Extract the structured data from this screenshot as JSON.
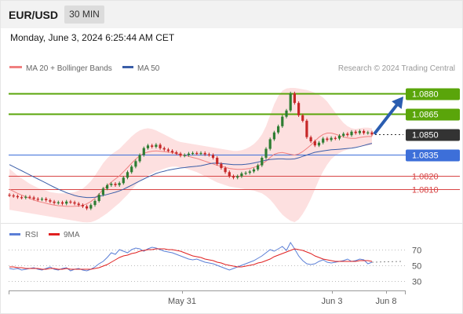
{
  "header": {
    "symbol": "EUR/USD",
    "timeframe": "30 MIN",
    "datetime": "Monday, June 3, 2024 6:25:44 AM CET"
  },
  "legend": {
    "ma20": "MA 20 + Bollinger Bands",
    "ma50": "MA 50",
    "credit": "Research © 2024 Trading Central",
    "rsi": "RSI",
    "ma9": "9MA"
  },
  "colors": {
    "bollinger_fill": "#fde0e0",
    "ma20": "#f08080",
    "ma50": "#3b5ea8",
    "bull": "#2e7d32",
    "bear": "#c62828",
    "resistance": "#5aa50a",
    "support_blue": "#3d6fd9",
    "support_red": "#d84545",
    "current": "#333333",
    "rsi": "#5b7fd6",
    "rsi_ma": "#e02020",
    "arrow": "#2a5db0"
  },
  "chart_data": [
    {
      "type": "line",
      "subtype": "candlestick-price",
      "title": "EUR/USD 30 MIN",
      "ylim": [
        1.079,
        1.0892
      ],
      "xlabel": "",
      "ylabel": "",
      "x_ticks": [
        "May 31",
        "Jun 3",
        "Jun 8"
      ],
      "grid": false,
      "legend_placement": "top-left",
      "levels": [
        {
          "value": 1.088,
          "label": "1.0880",
          "kind": "resistance"
        },
        {
          "value": 1.0865,
          "label": "1.0865",
          "kind": "resistance"
        },
        {
          "value": 1.085,
          "label": "1.0850",
          "kind": "current"
        },
        {
          "value": 1.0835,
          "label": "1.0835",
          "kind": "pivot"
        },
        {
          "value": 1.082,
          "label": "1.0820",
          "kind": "support"
        },
        {
          "value": 1.081,
          "label": "1.0810",
          "kind": "support"
        }
      ],
      "close": [
        1.08055,
        1.0805,
        1.08042,
        1.08038,
        1.08045,
        1.0804,
        1.0803,
        1.08025,
        1.0803,
        1.0802,
        1.0801,
        1.08,
        1.08005,
        1.07995,
        1.0801,
        1.08005,
        1.07995,
        1.07985,
        1.07975,
        1.0796,
        1.07985,
        1.08015,
        1.0806,
        1.08105,
        1.0813,
        1.0814,
        1.0813,
        1.08145,
        1.08185,
        1.08225,
        1.08265,
        1.08305,
        1.0835,
        1.084,
        1.0842,
        1.0841,
        1.08425,
        1.084,
        1.0839,
        1.0838,
        1.0837,
        1.0836,
        1.08345,
        1.0835,
        1.0836,
        1.08365,
        1.0836,
        1.08365,
        1.08355,
        1.0835,
        1.0833,
        1.08285,
        1.08255,
        1.08225,
        1.08195,
        1.08185,
        1.08195,
        1.08215,
        1.0822,
        1.0823,
        1.08245,
        1.08275,
        1.0833,
        1.08395,
        1.08465,
        1.08515,
        1.0856,
        1.0863,
        1.08675,
        1.088,
        1.0873,
        1.0864,
        1.086,
        1.0848,
        1.0845,
        1.0842,
        1.0844,
        1.0847,
        1.0846,
        1.08475,
        1.0847,
        1.0849,
        1.08505,
        1.08495,
        1.0852,
        1.0851,
        1.08525,
        1.0851,
        1.08515,
        1.085
      ],
      "bollinger_upper": [
        1.0825,
        1.08225,
        1.082,
        1.0818,
        1.0816,
        1.0814,
        1.08125,
        1.0811,
        1.081,
        1.0809,
        1.0808,
        1.08075,
        1.0807,
        1.0807,
        1.0807,
        1.08075,
        1.0808,
        1.0809,
        1.08105,
        1.0813,
        1.0816,
        1.082,
        1.08245,
        1.0829,
        1.08325,
        1.08355,
        1.08375,
        1.08395,
        1.08425,
        1.08455,
        1.08485,
        1.0851,
        1.0853,
        1.0854,
        1.08545,
        1.0854,
        1.0853,
        1.08515,
        1.085,
        1.08485,
        1.0847,
        1.08455,
        1.08445,
        1.0844,
        1.08435,
        1.0843,
        1.08425,
        1.0842,
        1.08415,
        1.0841,
        1.08405,
        1.084,
        1.08395,
        1.0839,
        1.08385,
        1.0838,
        1.0838,
        1.08385,
        1.08395,
        1.0841,
        1.0843,
        1.0846,
        1.085,
        1.0856,
        1.0864,
        1.0872,
        1.0878,
        1.0882,
        1.08835,
        1.0884,
        1.0884,
        1.08835,
        1.0883,
        1.08825,
        1.08815,
        1.08805,
        1.0879,
        1.0877,
        1.0874,
        1.087,
        1.0866,
        1.0862,
        1.08585,
        1.0856,
        1.08545,
        1.0854,
        1.08545,
        1.0855,
        1.0855,
        1.08545
      ],
      "bollinger_lower": [
        1.0795,
        1.07945,
        1.0794,
        1.07935,
        1.0793,
        1.07925,
        1.0792,
        1.07915,
        1.0791,
        1.07905,
        1.079,
        1.07895,
        1.0789,
        1.07885,
        1.0788,
        1.07875,
        1.0787,
        1.07865,
        1.0786,
        1.07858,
        1.0786,
        1.0787,
        1.07885,
        1.07905,
        1.07925,
        1.0795,
        1.07975,
        1.08,
        1.0803,
        1.0806,
        1.08095,
        1.0813,
        1.0816,
        1.08185,
        1.082,
        1.08215,
        1.0823,
        1.0824,
        1.0825,
        1.0826,
        1.08265,
        1.08265,
        1.0826,
        1.08255,
        1.08245,
        1.08235,
        1.08225,
        1.0821,
        1.08195,
        1.0818,
        1.08165,
        1.0815,
        1.0814,
        1.0813,
        1.0812,
        1.08115,
        1.0811,
        1.08105,
        1.081,
        1.08095,
        1.0809,
        1.0808,
        1.0807,
        1.0805,
        1.08025,
        1.0799,
        1.0795,
        1.07915,
        1.0789,
        1.0787,
        1.0786,
        1.0788,
        1.0792,
        1.0797,
        1.0803,
        1.081,
        1.0817,
        1.0823,
        1.0828,
        1.0832,
        1.08345,
        1.08365,
        1.0838,
        1.0839,
        1.084,
        1.08405,
        1.0841,
        1.08415,
        1.0842,
        1.08425
      ],
      "ma20": [
        1.081,
        1.08085,
        1.0807,
        1.08058,
        1.08045,
        1.08033,
        1.08022,
        1.08012,
        1.08005,
        1.07998,
        1.0799,
        1.07985,
        1.0798,
        1.07978,
        1.07975,
        1.07975,
        1.07975,
        1.07978,
        1.07982,
        1.07994,
        1.0801,
        1.08035,
        1.08065,
        1.08098,
        1.08125,
        1.08152,
        1.08175,
        1.08198,
        1.08228,
        1.08258,
        1.0829,
        1.0832,
        1.08345,
        1.08362,
        1.08372,
        1.08378,
        1.0838,
        1.08378,
        1.08375,
        1.08372,
        1.08368,
        1.0836,
        1.08352,
        1.08347,
        1.0834,
        1.08332,
        1.08325,
        1.08315,
        1.08305,
        1.08295,
        1.08285,
        1.08275,
        1.08268,
        1.0826,
        1.08252,
        1.08248,
        1.08245,
        1.08245,
        1.08248,
        1.08252,
        1.0826,
        1.0827,
        1.08285,
        1.08305,
        1.08332,
        1.08355,
        1.08365,
        1.08368,
        1.08362,
        1.08355,
        1.0835,
        1.08358,
        1.08375,
        1.08398,
        1.08422,
        1.08452,
        1.0848,
        1.085,
        1.0851,
        1.0851,
        1.08502,
        1.08492,
        1.08482,
        1.08475,
        1.08472,
        1.08472,
        1.08478,
        1.08482,
        1.08485,
        1.08485
      ],
      "ma50": [
        1.0828,
        1.08265,
        1.0825,
        1.08235,
        1.0822,
        1.08205,
        1.0819,
        1.08175,
        1.0816,
        1.08145,
        1.0813,
        1.08115,
        1.081,
        1.08088,
        1.08075,
        1.08065,
        1.08055,
        1.08048,
        1.08043,
        1.0804,
        1.0804,
        1.08042,
        1.08048,
        1.08055,
        1.08062,
        1.0807,
        1.08078,
        1.08088,
        1.081,
        1.08115,
        1.0813,
        1.08145,
        1.0816,
        1.08175,
        1.0819,
        1.08202,
        1.08215,
        1.08225,
        1.08232,
        1.0824,
        1.08245,
        1.0825,
        1.08255,
        1.08258,
        1.08262,
        1.08265,
        1.08268,
        1.08272,
        1.08278,
        1.08285,
        1.0829,
        1.0829,
        1.08288,
        1.08285,
        1.08282,
        1.0828,
        1.0828,
        1.0828,
        1.08282,
        1.08286,
        1.08292,
        1.08298,
        1.08305,
        1.08312,
        1.08318,
        1.0832,
        1.08322,
        1.08322,
        1.0832,
        1.0832,
        1.08322,
        1.0833,
        1.0834,
        1.0835,
        1.0836,
        1.0837,
        1.08375,
        1.0838,
        1.08384,
        1.08388,
        1.0839,
        1.08392,
        1.08395,
        1.08398,
        1.084,
        1.08405,
        1.08412,
        1.0842,
        1.08428,
        1.08435
      ]
    },
    {
      "type": "line",
      "subtype": "rsi",
      "title": "RSI",
      "ylim": [
        20,
        80
      ],
      "y_ticks": [
        70,
        50,
        30
      ],
      "legend_placement": "top-left",
      "series": [
        {
          "name": "RSI",
          "values": [
            46,
            45,
            46,
            44,
            45,
            46,
            47,
            45,
            44,
            46,
            48,
            45,
            44,
            46,
            47,
            43,
            45,
            46,
            44,
            43,
            45,
            48,
            52,
            55,
            60,
            66,
            64,
            70,
            68,
            66,
            70,
            72,
            71,
            68,
            71,
            73,
            72,
            70,
            68,
            67,
            66,
            64,
            62,
            60,
            58,
            57,
            58,
            56,
            54,
            53,
            52,
            50,
            48,
            46,
            44,
            46,
            48,
            50,
            52,
            54,
            56,
            59,
            62,
            66,
            70,
            68,
            71,
            74,
            69,
            79,
            71,
            62,
            56,
            52,
            51,
            52,
            55,
            57,
            54,
            53,
            54,
            55,
            56,
            58,
            55,
            56,
            58,
            57,
            52,
            54
          ]
        },
        {
          "name": "9MA",
          "values": [
            48,
            48,
            47,
            47,
            46,
            46,
            46,
            46,
            45,
            45,
            46,
            46,
            45,
            45,
            46,
            45,
            45,
            45,
            45,
            45,
            45,
            46,
            47,
            49,
            51,
            54,
            57,
            60,
            62,
            63,
            65,
            66,
            68,
            69,
            70,
            70,
            71,
            71,
            71,
            70,
            70,
            69,
            68,
            66,
            64,
            62,
            61,
            60,
            58,
            57,
            56,
            54,
            53,
            51,
            50,
            49,
            48,
            48,
            49,
            50,
            51,
            53,
            54,
            56,
            58,
            61,
            63,
            65,
            67,
            69,
            71,
            70,
            69,
            67,
            65,
            62,
            60,
            58,
            57,
            56,
            55,
            55,
            55,
            55,
            55,
            55,
            56,
            56,
            56,
            55
          ]
        }
      ]
    }
  ]
}
